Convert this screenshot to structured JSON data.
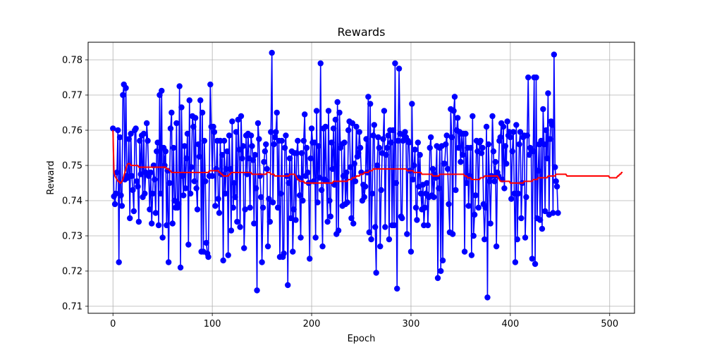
{
  "chart_data": {
    "type": "line",
    "title": "Rewards",
    "xlabel": "Epoch",
    "ylabel": "Reward",
    "xlim": [
      -25,
      525
    ],
    "ylim": [
      0.708,
      0.785
    ],
    "x_ticks": [
      0,
      100,
      200,
      300,
      400,
      500
    ],
    "y_ticks": [
      0.71,
      0.72,
      0.73,
      0.74,
      0.75,
      0.76,
      0.77,
      0.78
    ],
    "x_tick_labels": [
      "0",
      "100",
      "200",
      "300",
      "400",
      "500"
    ],
    "y_tick_labels": [
      "0.71",
      "0.72",
      "0.73",
      "0.74",
      "0.75",
      "0.76",
      "0.77",
      "0.78"
    ],
    "grid": true,
    "legend": "none",
    "colors": {
      "rewards": "#0000ff",
      "moving_average": "#ff0000",
      "grid": "#b0b0b0"
    },
    "series": [
      {
        "marker": "circle",
        "x_start": 0,
        "x_step": 1,
        "values": [
          0.7605,
          0.7412,
          0.739,
          0.742,
          0.748,
          0.76,
          0.7225,
          0.758,
          0.7415,
          0.7385,
          0.77,
          0.773,
          0.746,
          0.772,
          0.747,
          0.7465,
          0.7575,
          0.735,
          0.759,
          0.747,
          0.743,
          0.737,
          0.76,
          0.7605,
          0.7455,
          0.744,
          0.734,
          0.757,
          0.7475,
          0.7585,
          0.741,
          0.759,
          0.742,
          0.748,
          0.762,
          0.757,
          0.747,
          0.7375,
          0.748,
          0.7335,
          0.742,
          0.75,
          0.746,
          0.7365,
          0.754,
          0.7565,
          0.733,
          0.77,
          0.742,
          0.7712,
          0.7295,
          0.755,
          0.75,
          0.754,
          0.733,
          0.7485,
          0.7225,
          0.745,
          0.7605,
          0.765,
          0.7335,
          0.755,
          0.74,
          0.738,
          0.762,
          0.738,
          0.739,
          0.7725,
          0.721,
          0.7665,
          0.747,
          0.7415,
          0.7555,
          0.7435,
          0.752,
          0.759,
          0.7275,
          0.7685,
          0.742,
          0.7495,
          0.764,
          0.761,
          0.7455,
          0.7635,
          0.7435,
          0.7375,
          0.756,
          0.7525,
          0.7685,
          0.7255,
          0.765,
          0.7255,
          0.757,
          0.7455,
          0.728,
          0.725,
          0.724,
          0.747,
          0.773,
          0.761,
          0.747,
          0.761,
          0.7595,
          0.7385,
          0.749,
          0.757,
          0.7405,
          0.7365,
          0.757,
          0.7475,
          0.753,
          0.723,
          0.757,
          0.742,
          0.749,
          0.754,
          0.7245,
          0.7585,
          0.749,
          0.7315,
          0.7625,
          0.738,
          0.745,
          0.741,
          0.7595,
          0.734,
          0.763,
          0.7545,
          0.7325,
          0.764,
          0.752,
          0.7555,
          0.7265,
          0.7375,
          0.7585,
          0.7475,
          0.759,
          0.752,
          0.738,
          0.7585,
          0.7555,
          0.7515,
          0.7335,
          0.753,
          0.7435,
          0.7145,
          0.762,
          0.7575,
          0.747,
          0.741,
          0.7225,
          0.738,
          0.751,
          0.754,
          0.756,
          0.749,
          0.727,
          0.7405,
          0.734,
          0.7595,
          0.782,
          0.7395,
          0.756,
          0.758,
          0.7595,
          0.765,
          0.738,
          0.757,
          0.724,
          0.742,
          0.757,
          0.724,
          0.725,
          0.755,
          0.7585,
          0.747,
          0.716,
          0.745,
          0.752,
          0.735,
          0.754,
          0.7255,
          0.7375,
          0.7535,
          0.7345,
          0.7535,
          0.757,
          0.7465,
          0.7415,
          0.7295,
          0.7535,
          0.74,
          0.757,
          0.7645,
          0.747,
          0.755,
          0.748,
          0.745,
          0.7235,
          0.752,
          0.7605,
          0.7565,
          0.7455,
          0.7565,
          0.7295,
          0.7655,
          0.7395,
          0.7555,
          0.7465,
          0.779,
          0.743,
          0.727,
          0.7605,
          0.746,
          0.761,
          0.7455,
          0.734,
          0.7655,
          0.74,
          0.7355,
          0.7565,
          0.749,
          0.7605,
          0.7445,
          0.763,
          0.7305,
          0.768,
          0.7315,
          0.765,
          0.755,
          0.756,
          0.7385,
          0.747,
          0.7565,
          0.739,
          0.748,
          0.7395,
          0.76,
          0.7625,
          0.7495,
          0.735,
          0.762,
          0.7335,
          0.7505,
          0.7455,
          0.761,
          0.7525,
          0.7535,
          0.7595,
          0.755,
          0.748,
          0.74,
          0.7445,
          0.741,
          0.744,
          0.7575,
          0.748,
          0.7695,
          0.731,
          0.7675,
          0.729,
          0.742,
          0.7585,
          0.7615,
          0.7325,
          0.7195,
          0.75,
          0.758,
          0.755,
          0.727,
          0.743,
          0.7535,
          0.7575,
          0.7655,
          0.7325,
          0.753,
          0.755,
          0.7585,
          0.729,
          0.76,
          0.7565,
          0.733,
          0.76,
          0.733,
          0.779,
          0.745,
          0.715,
          0.757,
          0.7775,
          0.759,
          0.7355,
          0.735,
          0.757,
          0.7585,
          0.7595,
          0.758,
          0.7305,
          0.757,
          0.7565,
          0.7485,
          0.7255,
          0.7675,
          0.746,
          0.75,
          0.7545,
          0.738,
          0.7345,
          0.7565,
          0.744,
          0.753,
          0.742,
          0.7375,
          0.7445,
          0.733,
          0.738,
          0.742,
          0.745,
          0.733,
          0.741,
          0.755,
          0.758,
          0.7415,
          0.749,
          0.741,
          0.7475,
          0.7465,
          0.7555,
          0.718,
          0.7435,
          0.755,
          0.72,
          0.7555,
          0.723,
          0.7505,
          0.7505,
          0.756,
          0.7585,
          0.749,
          0.739,
          0.731,
          0.766,
          0.758,
          0.7305,
          0.7655,
          0.7695,
          0.743,
          0.76,
          0.7635,
          0.755,
          0.7595,
          0.751,
          0.759,
          0.753,
          0.759,
          0.7255,
          0.759,
          0.745,
          0.755,
          0.7385,
          0.747,
          0.755,
          0.7245,
          0.764,
          0.73,
          0.736,
          0.7415,
          0.757,
          0.754,
          0.738,
          0.7565,
          0.757,
          0.7535,
          0.755,
          0.739,
          0.729,
          0.738,
          0.761,
          0.7125,
          0.756,
          0.7455,
          0.7335,
          0.747,
          0.764,
          0.754,
          0.7455,
          0.751,
          0.727,
          0.748,
          0.747,
          0.757,
          0.758,
          0.762,
          0.746,
          0.761,
          0.7435,
          0.7555,
          0.7505,
          0.7625,
          0.7585,
          0.7595,
          0.758,
          0.7405,
          0.754,
          0.7595,
          0.742,
          0.7225,
          0.7615,
          0.729,
          0.742,
          0.756,
          0.7595,
          0.735,
          0.745,
          0.758,
          0.7585,
          0.7295,
          0.741,
          0.7585,
          0.775,
          0.753,
          0.755,
          0.7545,
          0.7235,
          0.754,
          0.775,
          0.722,
          0.775,
          0.735,
          0.7485,
          0.756,
          0.7345,
          0.757,
          0.732,
          0.766,
          0.756,
          0.737,
          0.76,
          0.752,
          0.7705,
          0.736,
          0.7575,
          0.7625,
          0.7615,
          0.7365,
          0.7815,
          0.7495,
          0.7455,
          0.744,
          0.7365
        ],
        "name": ""
      },
      {
        "marker": "none",
        "x_start": 0,
        "x_step": 1,
        "values": [
          0.76,
          0.748,
          0.747,
          0.7465,
          0.746,
          0.7455,
          0.7455,
          0.745,
          0.745,
          0.7455,
          0.746,
          0.747,
          0.748,
          0.749,
          0.75,
          0.7505,
          0.7505,
          0.7505,
          0.75,
          0.75,
          0.75,
          0.75,
          0.75,
          0.75,
          0.75,
          0.75,
          0.7495,
          0.7495,
          0.7495,
          0.7495,
          0.7495,
          0.7495,
          0.7495,
          0.7495,
          0.7495,
          0.7495,
          0.7495,
          0.7495,
          0.7495,
          0.7495,
          0.7495,
          0.7495,
          0.7495,
          0.7495,
          0.7495,
          0.7495,
          0.7495,
          0.7495,
          0.7495,
          0.7495,
          0.7495,
          0.7495,
          0.7495,
          0.7495,
          0.749,
          0.749,
          0.749,
          0.7485,
          0.7485,
          0.748,
          0.748,
          0.748,
          0.748,
          0.748,
          0.748,
          0.748,
          0.748,
          0.748,
          0.748,
          0.748,
          0.748,
          0.748,
          0.748,
          0.748,
          0.748,
          0.748,
          0.748,
          0.748,
          0.748,
          0.748,
          0.748,
          0.748,
          0.748,
          0.748,
          0.748,
          0.748,
          0.748,
          0.748,
          0.748,
          0.748,
          0.748,
          0.748,
          0.748,
          0.748,
          0.748,
          0.748,
          0.748,
          0.7485,
          0.7485,
          0.7485,
          0.7485,
          0.7485,
          0.7485,
          0.7485,
          0.7485,
          0.7485,
          0.7485,
          0.748,
          0.748,
          0.7475,
          0.7475,
          0.747,
          0.747,
          0.747,
          0.747,
          0.747,
          0.747,
          0.7475,
          0.7475,
          0.748,
          0.748,
          0.748,
          0.748,
          0.748,
          0.748,
          0.748,
          0.748,
          0.748,
          0.748,
          0.748,
          0.748,
          0.748,
          0.748,
          0.748,
          0.748,
          0.748,
          0.748,
          0.748,
          0.748,
          0.748,
          0.7475,
          0.7475,
          0.7475,
          0.7475,
          0.7475,
          0.7475,
          0.7475,
          0.7475,
          0.7475,
          0.7475,
          0.7475,
          0.7475,
          0.7475,
          0.7475,
          0.7475,
          0.748,
          0.748,
          0.748,
          0.748,
          0.7475,
          0.7475,
          0.7475,
          0.7475,
          0.747,
          0.747,
          0.747,
          0.747,
          0.747,
          0.747,
          0.747,
          0.747,
          0.747,
          0.747,
          0.747,
          0.747,
          0.747,
          0.747,
          0.747,
          0.7475,
          0.7475,
          0.7475,
          0.7475,
          0.7475,
          0.7475,
          0.747,
          0.7465,
          0.746,
          0.746,
          0.7455,
          0.7455,
          0.7455,
          0.7455,
          0.7455,
          0.745,
          0.745,
          0.745,
          0.745,
          0.745,
          0.745,
          0.745,
          0.745,
          0.745,
          0.745,
          0.745,
          0.745,
          0.745,
          0.745,
          0.745,
          0.745,
          0.745,
          0.745,
          0.745,
          0.745,
          0.745,
          0.745,
          0.745,
          0.745,
          0.745,
          0.745,
          0.745,
          0.745,
          0.745,
          0.7455,
          0.7455,
          0.7455,
          0.7455,
          0.7455,
          0.7455,
          0.7455,
          0.7455,
          0.7455,
          0.7455,
          0.7455,
          0.7455,
          0.7455,
          0.7455,
          0.7455,
          0.746,
          0.746,
          0.746,
          0.746,
          0.7465,
          0.7465,
          0.7465,
          0.7465,
          0.747,
          0.747,
          0.747,
          0.747,
          0.7475,
          0.7475,
          0.7475,
          0.7475,
          0.748,
          0.748,
          0.748,
          0.748,
          0.748,
          0.7485,
          0.7485,
          0.7485,
          0.7485,
          0.749,
          0.749,
          0.749,
          0.749,
          0.749,
          0.749,
          0.749,
          0.749,
          0.749,
          0.749,
          0.749,
          0.749,
          0.749,
          0.749,
          0.749,
          0.749,
          0.749,
          0.749,
          0.749,
          0.749,
          0.749,
          0.749,
          0.749,
          0.749,
          0.749,
          0.749,
          0.749,
          0.749,
          0.749,
          0.749,
          0.749,
          0.749,
          0.749,
          0.749,
          0.7485,
          0.7485,
          0.7485,
          0.7485,
          0.7485,
          0.7485,
          0.7485,
          0.748,
          0.748,
          0.748,
          0.748,
          0.748,
          0.748,
          0.748,
          0.748,
          0.7475,
          0.7475,
          0.7475,
          0.7475,
          0.7475,
          0.7475,
          0.7475,
          0.7475,
          0.7475,
          0.7475,
          0.7475,
          0.747,
          0.747,
          0.747,
          0.747,
          0.747,
          0.747,
          0.747,
          0.7475,
          0.7475,
          0.7475,
          0.7475,
          0.7475,
          0.7475,
          0.7475,
          0.7475,
          0.7475,
          0.7475,
          0.7475,
          0.7475,
          0.7475,
          0.7475,
          0.7475,
          0.7475,
          0.7475,
          0.7475,
          0.7475,
          0.7475,
          0.7475,
          0.7475,
          0.7475,
          0.7475,
          0.7475,
          0.747,
          0.747,
          0.747,
          0.7465,
          0.7465,
          0.7465,
          0.7465,
          0.746,
          0.746,
          0.746,
          0.746,
          0.746,
          0.746,
          0.746,
          0.746,
          0.746,
          0.7465,
          0.7465,
          0.7465,
          0.7465,
          0.747,
          0.747,
          0.747,
          0.747,
          0.747,
          0.747,
          0.747,
          0.747,
          0.747,
          0.747,
          0.747,
          0.747,
          0.747,
          0.747,
          0.7465,
          0.746,
          0.7455,
          0.7455,
          0.7455,
          0.7455,
          0.7455,
          0.7455,
          0.7455,
          0.7455,
          0.7455,
          0.7455,
          0.745,
          0.745,
          0.745,
          0.745,
          0.745,
          0.745,
          0.745,
          0.745,
          0.745,
          0.745,
          0.745,
          0.745,
          0.745,
          0.745,
          0.7455,
          0.7455,
          0.7455,
          0.7455,
          0.7455,
          0.7455,
          0.7455,
          0.7455,
          0.7455,
          0.746,
          0.746,
          0.746,
          0.746,
          0.746,
          0.7465,
          0.7465,
          0.7465,
          0.7465,
          0.7465,
          0.7465,
          0.7465,
          0.7465,
          0.7465,
          0.7465,
          0.747,
          0.747,
          0.747,
          0.747,
          0.747,
          0.747,
          0.747,
          0.747,
          0.7475,
          0.7475,
          0.7475,
          0.7475,
          0.7475,
          0.7475,
          0.7475,
          0.7475,
          0.7475,
          0.7475,
          0.7475,
          0.747,
          0.747,
          0.747,
          0.747,
          0.747,
          0.747,
          0.747,
          0.747,
          0.747,
          0.747,
          0.747,
          0.747,
          0.747,
          0.747,
          0.747,
          0.747,
          0.747,
          0.747,
          0.747,
          0.747,
          0.747,
          0.747,
          0.747,
          0.747,
          0.747,
          0.747,
          0.747,
          0.747,
          0.747,
          0.747,
          0.747,
          0.747,
          0.747,
          0.747,
          0.747,
          0.747,
          0.747,
          0.747,
          0.747,
          0.747,
          0.747,
          0.747,
          0.747,
          0.7465,
          0.7465,
          0.7465,
          0.7465,
          0.7465,
          0.7465,
          0.7465,
          0.7465,
          0.747,
          0.747,
          0.7475,
          0.7475,
          0.748,
          0.748
        ],
        "name": ""
      }
    ]
  }
}
